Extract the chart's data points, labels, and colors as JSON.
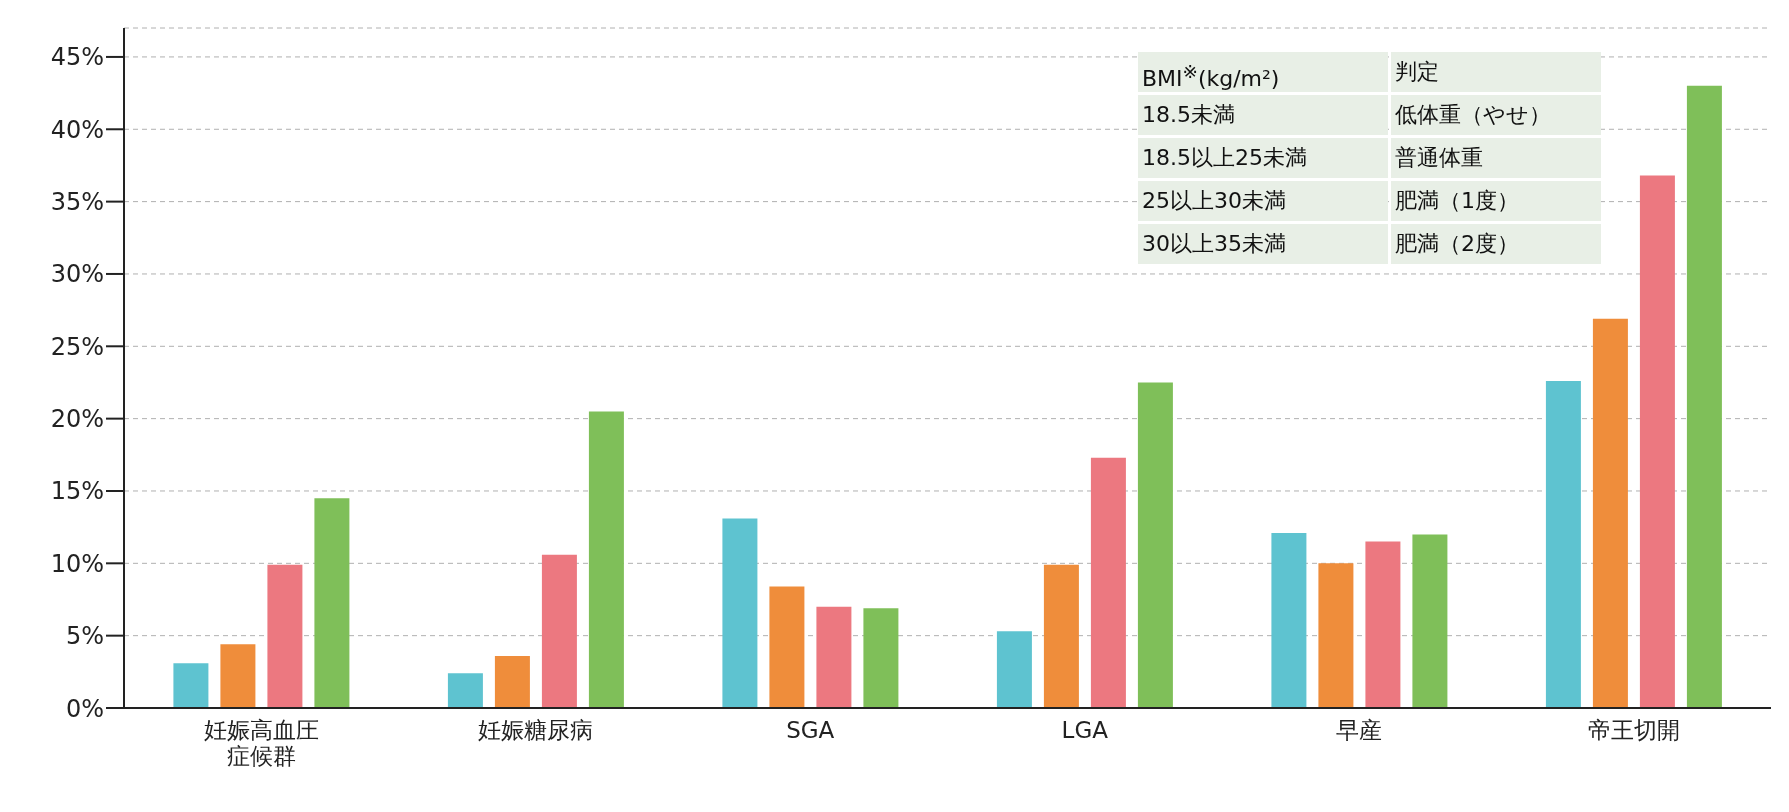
{
  "chart_data": {
    "type": "bar",
    "categories": [
      "妊娠高血圧症候群",
      "妊娠糖尿病",
      "SGA",
      "LGA",
      "早産",
      "帝王切開"
    ],
    "series": [
      {
        "color": "#5ec3d0",
        "values": [
          3.1,
          2.4,
          13.1,
          5.3,
          12.1,
          22.6
        ]
      },
      {
        "color": "#ef8d3b",
        "values": [
          4.4,
          3.6,
          8.4,
          9.9,
          10.0,
          26.9
        ]
      },
      {
        "color": "#ec7880",
        "values": [
          9.9,
          10.6,
          7.0,
          17.3,
          11.5,
          36.8
        ]
      },
      {
        "color": "#7fbf59",
        "values": [
          14.5,
          20.5,
          6.9,
          22.5,
          12.0,
          43.0
        ]
      }
    ],
    "ylim": [
      0,
      47
    ],
    "yticks": [
      {
        "value": 0,
        "label": "0%"
      },
      {
        "value": 5,
        "label": "5%"
      },
      {
        "value": 10,
        "label": "10%"
      },
      {
        "value": 15,
        "label": "15%"
      },
      {
        "value": 20,
        "label": "20%"
      },
      {
        "value": 25,
        "label": "25%"
      },
      {
        "value": 30,
        "label": "30%"
      },
      {
        "value": 35,
        "label": "35%"
      },
      {
        "value": 40,
        "label": "40%"
      },
      {
        "value": 45,
        "label": "45%"
      }
    ],
    "grid": "y",
    "annotations": [
      "BMI$^{※}$(kg/m²)",
      "判定",
      "18.5未満",
      "低体重（やせ）",
      "18.5以上25未満",
      "普通体重",
      "25以上30未満",
      "肥満（1度）",
      "30以上35未満",
      "肥満（2度）"
    ]
  }
}
